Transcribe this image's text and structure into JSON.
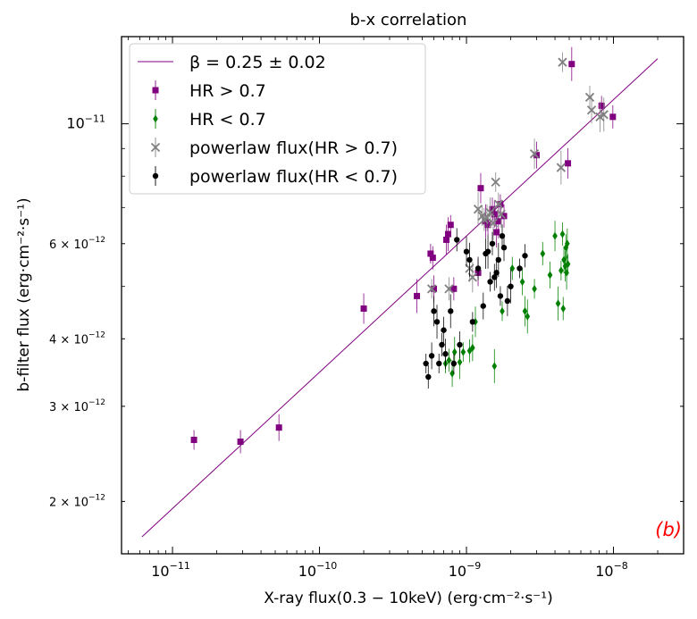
{
  "chart_data": {
    "type": "scatter",
    "title": "b-x correlation",
    "xlabel": "X-ray flux(0.3 − 10keV) (erg·cm⁻²·s⁻¹)",
    "ylabel": "b-filter flux (erg·cm⁻²·s⁻¹)",
    "x_scale": "log",
    "y_scale": "log",
    "xlim": [
      4.5e-12,
      3e-08
    ],
    "ylim": [
      1.6e-12,
      1.45e-11
    ],
    "x_ticks": [
      {
        "value": 1e-11,
        "base": "10",
        "exp": "−11"
      },
      {
        "value": 1e-10,
        "base": "10",
        "exp": "−10"
      },
      {
        "value": 1e-09,
        "base": "10",
        "exp": "−9"
      },
      {
        "value": 1e-08,
        "base": "10",
        "exp": "−8"
      }
    ],
    "y_ticks": [
      {
        "value": 1e-11,
        "base": "10",
        "exp": "−11"
      },
      {
        "value": 6e-12,
        "base": "6 × 10",
        "exp": "−12"
      },
      {
        "value": 4e-12,
        "base": "4 × 10",
        "exp": "−12"
      },
      {
        "value": 3e-12,
        "base": "3 × 10",
        "exp": "−12"
      },
      {
        "value": 2e-12,
        "base": "2 × 10",
        "exp": "−12"
      }
    ],
    "annotation": {
      "text": "(b)",
      "color": "#ff0000"
    },
    "legend_position": "top-left",
    "series": [
      {
        "name": "β = 0.25 ± 0.02",
        "kind": "line",
        "color": "#800080",
        "x": [
          6.2e-12,
          2e-08
        ],
        "y": [
          1.72e-12,
          1.32e-11
        ]
      },
      {
        "name": "HR > 0.7",
        "kind": "points",
        "marker": "square",
        "color": "#800080",
        "x": [
          1.4e-11,
          2.9e-11,
          5.3e-11,
          2e-10,
          4.6e-10,
          5.7e-10,
          5.9e-10,
          6e-10,
          7.3e-10,
          7.5e-10,
          7.8e-10,
          8.2e-10,
          1.2e-09,
          1.25e-09,
          1.35e-09,
          1.4e-09,
          1.5e-09,
          1.55e-09,
          1.6e-09,
          1.65e-09,
          1.7e-09,
          1.8e-09,
          3e-09,
          4.9e-09,
          5.2e-09,
          8.3e-09,
          9.9e-09
        ],
        "y": [
          2.6e-12,
          2.58e-12,
          2.74e-12,
          4.55e-12,
          4.8e-12,
          5.75e-12,
          5.65e-12,
          4.95e-12,
          6.1e-12,
          6.25e-12,
          6.5e-12,
          4.95e-12,
          5.3e-12,
          7.6e-12,
          6.6e-12,
          6.5e-12,
          6.95e-12,
          6.8e-12,
          6.3e-12,
          6.6e-12,
          7.1e-12,
          6.75e-12,
          8.75e-12,
          8.45e-12,
          1.29e-11,
          1.08e-11,
          1.03e-11
        ]
      },
      {
        "name": "HR < 0.7",
        "kind": "points",
        "marker": "diamond",
        "color": "#008000",
        "x": [
          7.2e-10,
          7.6e-10,
          8e-10,
          8.3e-10,
          9e-10,
          9.5e-10,
          1.05e-09,
          1.1e-09,
          1.15e-09,
          1.55e-09,
          1.75e-09,
          2.05e-09,
          2.4e-09,
          2.5e-09,
          2.6e-09,
          2.9e-09,
          3.3e-09,
          3.7e-09,
          4e-09,
          4.2e-09,
          4.4e-09,
          4.5e-09,
          4.6e-09,
          4.7e-09,
          4.8e-09,
          4.9e-09,
          4.55e-09,
          4.75e-09,
          4.85e-09
        ],
        "y": [
          3.6e-12,
          3.65e-12,
          3.45e-12,
          3.78e-12,
          3.62e-12,
          3.78e-12,
          3.8e-12,
          3.85e-12,
          4.3e-12,
          3.56e-12,
          4.5e-12,
          5.4e-12,
          5.1e-12,
          4.5e-12,
          4.4e-12,
          4.95e-12,
          5.75e-12,
          5.25e-12,
          6.2e-12,
          4.65e-12,
          5.35e-12,
          6.25e-12,
          5.6e-12,
          5.45e-12,
          5.3e-12,
          5.5e-12,
          4.55e-12,
          5.9e-12,
          6e-12
        ]
      },
      {
        "name": "powerlaw flux(HR > 0.7)",
        "kind": "points",
        "marker": "x",
        "color": "#808080",
        "x": [
          5.8e-10,
          7.6e-10,
          1.05e-09,
          1.1e-09,
          1.2e-09,
          1.28e-09,
          1.32e-09,
          1.38e-09,
          1.45e-09,
          1.52e-09,
          1.58e-09,
          1.65e-09,
          1.72e-09,
          2.9e-09,
          4.4e-09,
          4.5e-09,
          6.9e-09,
          7.1e-09,
          8.1e-09,
          8.6e-09
        ],
        "y": [
          4.95e-12,
          4.95e-12,
          5.4e-12,
          5.2e-12,
          6.95e-12,
          6.75e-12,
          6.65e-12,
          6.7e-12,
          6.85e-12,
          6.55e-12,
          7.8e-12,
          7.1e-12,
          6.8e-12,
          8.8e-12,
          8.3e-12,
          1.3e-11,
          1.12e-11,
          1.06e-11,
          1.03e-11,
          1.04e-11
        ]
      },
      {
        "name": "powerlaw flux(HR < 0.7)",
        "kind": "points",
        "marker": "circle",
        "color": "#000000",
        "x": [
          5.3e-10,
          5.5e-10,
          5.8e-10,
          6e-10,
          6.3e-10,
          6.5e-10,
          6.8e-10,
          7e-10,
          7.2e-10,
          7.8e-10,
          8.2e-10,
          8.6e-10,
          9e-10,
          1e-09,
          1.05e-09,
          1.1e-09,
          1.2e-09,
          1.3e-09,
          1.35e-09,
          1.4e-09,
          1.45e-09,
          1.5e-09,
          1.55e-09,
          1.6e-09,
          1.65e-09,
          1.7e-09,
          1.75e-09,
          1.8e-09,
          1.9e-09,
          2e-09,
          2.3e-09,
          2.5e-09
        ],
        "y": [
          3.6e-12,
          3.4e-12,
          3.72e-12,
          4.5e-12,
          4.3e-12,
          3.6e-12,
          3.9e-12,
          4.15e-12,
          3.75e-12,
          4.5e-12,
          3.6e-12,
          6.1e-12,
          3.9e-12,
          5.8e-12,
          5.6e-12,
          4.3e-12,
          5.4e-12,
          4.6e-12,
          5.75e-12,
          5.8e-12,
          5.1e-12,
          6e-12,
          5.2e-12,
          5.3e-12,
          5.6e-12,
          4.8e-12,
          6.2e-12,
          5.9e-12,
          4.7e-12,
          5e-12,
          5.4e-12,
          5.7e-12
        ]
      }
    ]
  }
}
